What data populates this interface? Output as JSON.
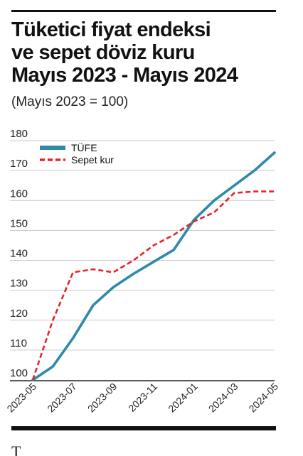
{
  "article": {
    "title_lines": [
      "Tüketici fiyat endeksi",
      "ve sepet döviz kuru",
      "Mayıs 2023 - Mayıs 2024"
    ],
    "subtitle": "(Mayıs 2023 = 100)",
    "following_text": "T"
  },
  "chart_data": {
    "type": "line",
    "x": [
      "2023-05",
      "2023-06",
      "2023-07",
      "2023-08",
      "2023-09",
      "2023-10",
      "2023-11",
      "2023-12",
      "2024-01",
      "2024-02",
      "2024-03",
      "2024-04",
      "2024-05"
    ],
    "x_tick_labels": [
      "2023-05",
      "2023-07",
      "2023-09",
      "2023-11",
      "2024-01",
      "2024-03",
      "2024-05"
    ],
    "ylim": [
      100,
      180
    ],
    "y_ticks": [
      100,
      110,
      120,
      130,
      140,
      150,
      160,
      170,
      180
    ],
    "grid": "horizontal",
    "legend_position": "top-left",
    "series": [
      {
        "name": "TÜFE",
        "color": "#2e8aa8",
        "style": "solid",
        "values": [
          100,
          104.5,
          114,
          125,
          131,
          135.5,
          139.5,
          143.5,
          153.5,
          160,
          165,
          170,
          176
        ]
      },
      {
        "name": "Sepet kur",
        "color": "#e8212b",
        "style": "dashed",
        "values": [
          100,
          120,
          136,
          137,
          136,
          140,
          145,
          148.5,
          153,
          156,
          162.5,
          163,
          163
        ]
      }
    ]
  }
}
